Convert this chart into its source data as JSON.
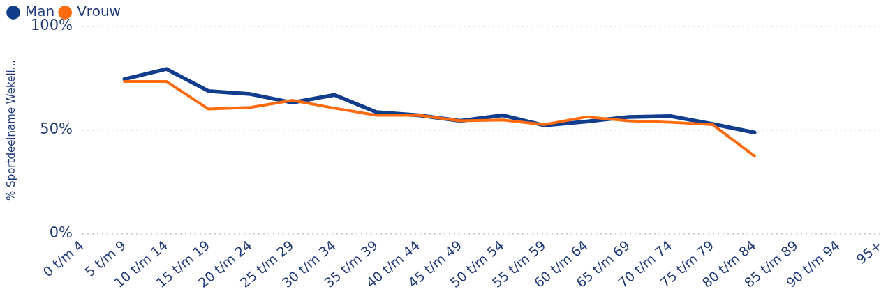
{
  "chart_data": {
    "type": "line",
    "ylabel": "% Sportdeelname Wekeli...",
    "categories": [
      "0 t/m 4",
      "5 t/m 9",
      "10 t/m 14",
      "15 t/m 19",
      "20 t/m 24",
      "25 t/m 29",
      "30 t/m 34",
      "35 t/m 39",
      "40 t/m 44",
      "45 t/m 49",
      "50 t/m 54",
      "55 t/m 59",
      "60 t/m 64",
      "65 t/m 69",
      "70 t/m 74",
      "75 t/m 79",
      "80 t/m 84",
      "85 t/m 89",
      "90 t/m 94",
      "95+"
    ],
    "series": [
      {
        "name": "Man",
        "color": "#123c8c",
        "values": [
          null,
          74.6,
          79.5,
          68.9,
          67.4,
          63.3,
          67,
          58.7,
          57.2,
          54.5,
          57.2,
          52.3,
          54.2,
          56.4,
          56.8,
          53,
          48.9,
          null,
          null,
          null
        ]
      },
      {
        "name": "Vrouw",
        "color": "#ff6a0d",
        "values": [
          null,
          73.5,
          73.5,
          60.2,
          61,
          64.4,
          60.6,
          57.2,
          57.2,
          54.5,
          54.9,
          52.7,
          56.4,
          54.5,
          53.8,
          52.7,
          37.5,
          null,
          null,
          null
        ]
      }
    ],
    "ylim": [
      0,
      100
    ],
    "yticks": [
      {
        "value": 0,
        "label": "0%"
      },
      {
        "value": 50,
        "label": "50%"
      },
      {
        "value": 100,
        "label": "100%"
      }
    ],
    "grid": "y",
    "legend": "top left",
    "marker": "none",
    "line_style": "solid"
  }
}
